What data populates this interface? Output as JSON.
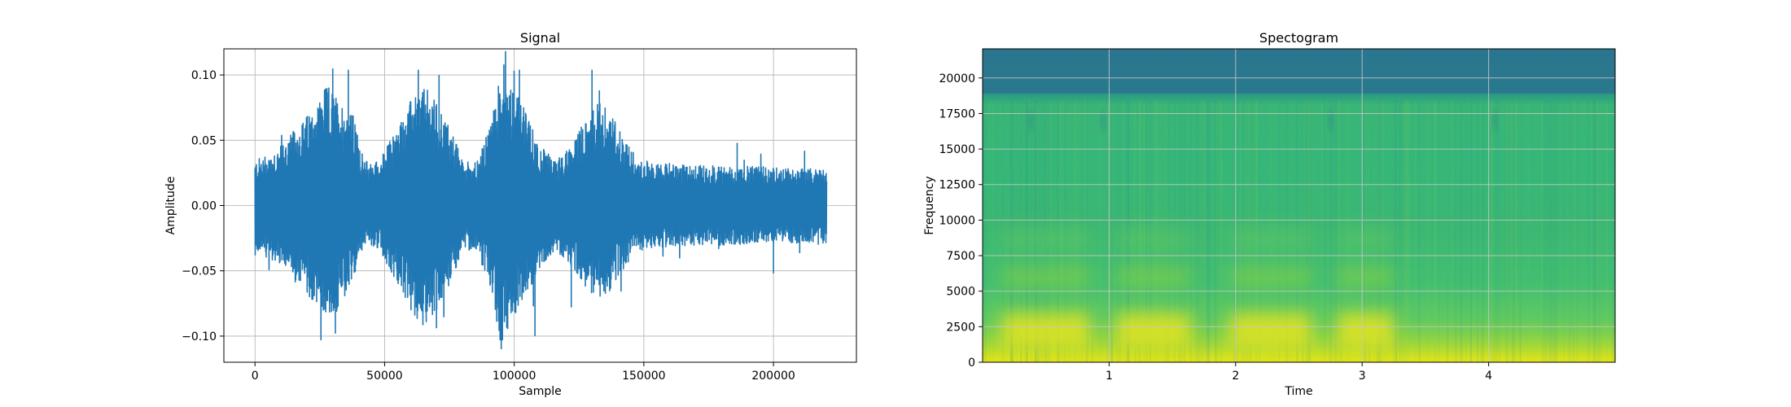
{
  "chart_data": [
    {
      "type": "line",
      "title": "Signal",
      "xlabel": "Sample",
      "ylabel": "Amplitude",
      "xlim": [
        -12000,
        232000
      ],
      "ylim": [
        -0.12,
        0.12
      ],
      "xticks": [
        0,
        50000,
        100000,
        150000,
        200000
      ],
      "xtick_labels": [
        "0",
        "50000",
        "100000",
        "150000",
        "200000"
      ],
      "yticks": [
        -0.1,
        -0.05,
        0.0,
        0.05,
        0.1
      ],
      "ytick_labels": [
        "−0.10",
        "−0.05",
        "0.00",
        "0.05",
        "0.10"
      ],
      "grid": true,
      "color": "#1f77b4",
      "x_range": [
        0,
        220500
      ],
      "envelope": {
        "x": [
          0,
          10000,
          20000,
          28000,
          33000,
          38000,
          42000,
          48000,
          54000,
          60000,
          65000,
          70000,
          76000,
          80000,
          86000,
          90000,
          95000,
          100000,
          105000,
          110000,
          116000,
          122000,
          128000,
          133000,
          138000,
          143000,
          148000,
          155000,
          165000,
          175000,
          185000,
          195000,
          205000,
          215000,
          220500
        ],
        "upper": [
          0.03,
          0.04,
          0.06,
          0.08,
          0.07,
          0.06,
          0.03,
          0.03,
          0.05,
          0.07,
          0.08,
          0.07,
          0.05,
          0.03,
          0.03,
          0.05,
          0.09,
          0.08,
          0.06,
          0.04,
          0.03,
          0.04,
          0.06,
          0.07,
          0.06,
          0.045,
          0.03,
          0.028,
          0.027,
          0.027,
          0.026,
          0.026,
          0.025,
          0.025,
          0.025
        ],
        "lower": [
          -0.03,
          -0.04,
          -0.06,
          -0.075,
          -0.07,
          -0.05,
          -0.025,
          -0.03,
          -0.05,
          -0.07,
          -0.08,
          -0.07,
          -0.05,
          -0.03,
          -0.03,
          -0.055,
          -0.09,
          -0.075,
          -0.06,
          -0.04,
          -0.03,
          -0.04,
          -0.055,
          -0.065,
          -0.055,
          -0.04,
          -0.03,
          -0.028,
          -0.027,
          -0.027,
          -0.026,
          -0.026,
          -0.025,
          -0.025,
          -0.025
        ]
      },
      "peaks": [
        {
          "x": 30000,
          "y": 0.105
        },
        {
          "x": 36000,
          "y": 0.104
        },
        {
          "x": 63000,
          "y": 0.104
        },
        {
          "x": 71000,
          "y": 0.1
        },
        {
          "x": 96000,
          "y": 0.108
        },
        {
          "x": 102000,
          "y": 0.104
        },
        {
          "x": 130000,
          "y": 0.104
        },
        {
          "x": 31000,
          "y": -0.098
        },
        {
          "x": 70000,
          "y": -0.094
        },
        {
          "x": 95000,
          "y": -0.11
        },
        {
          "x": 108000,
          "y": -0.1
        },
        {
          "x": 122000,
          "y": -0.078
        },
        {
          "x": 212000,
          "y": 0.042
        },
        {
          "x": 186000,
          "y": 0.048
        },
        {
          "x": 200000,
          "y": -0.052
        }
      ]
    },
    {
      "type": "heatmap",
      "title": "Spectogram",
      "xlabel": "Time",
      "ylabel": "Frequency",
      "xlim": [
        0,
        5.0
      ],
      "ylim": [
        0,
        22050
      ],
      "xticks": [
        1,
        2,
        3,
        4
      ],
      "xtick_labels": [
        "1",
        "2",
        "3",
        "4"
      ],
      "yticks": [
        0,
        2500,
        5000,
        7500,
        10000,
        12500,
        15000,
        17500,
        20000
      ],
      "ytick_labels": [
        "0",
        "2500",
        "5000",
        "7500",
        "10000",
        "12500",
        "15000",
        "17500",
        "20000"
      ],
      "grid": true,
      "colormap": "viridis",
      "high_energy_bands": [
        {
          "t0": 0.15,
          "t1": 0.85,
          "f0": 1000,
          "f1": 3500
        },
        {
          "t0": 1.05,
          "t1": 1.65,
          "f0": 1000,
          "f1": 3500
        },
        {
          "t0": 1.95,
          "t1": 2.6,
          "f0": 1000,
          "f1": 3500
        },
        {
          "t0": 2.8,
          "t1": 3.25,
          "f0": 1000,
          "f1": 3500
        }
      ],
      "cutoff_frequency": 19000
    }
  ]
}
